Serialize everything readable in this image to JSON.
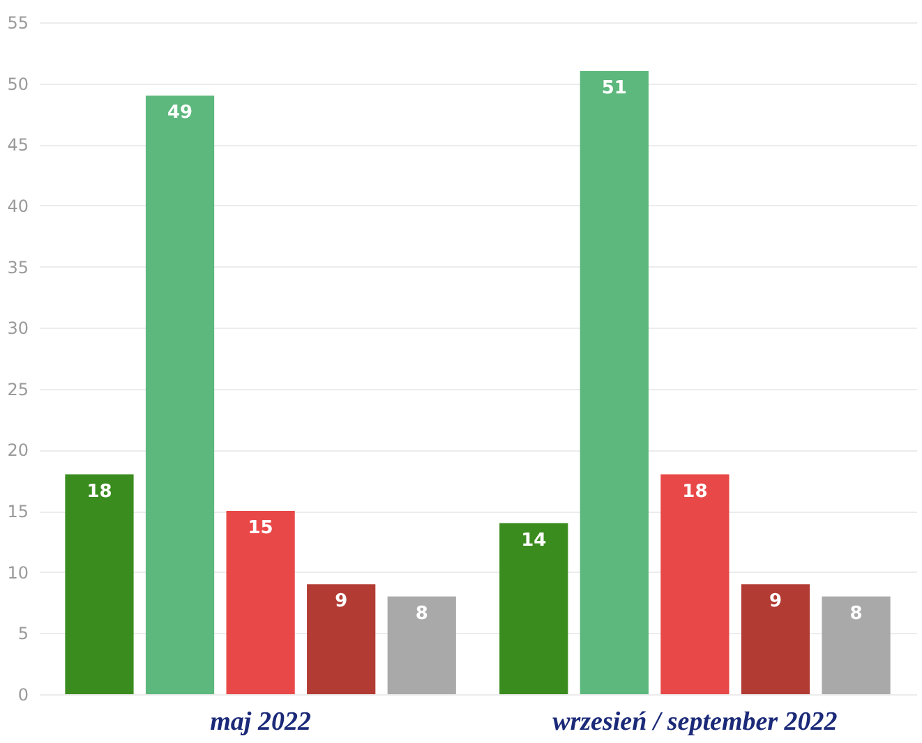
{
  "chart_data": {
    "type": "bar",
    "categories": [
      "maj 2022",
      "wrzesień / september 2022"
    ],
    "series": [
      {
        "color": "#3b8c1f",
        "values": [
          18,
          14
        ]
      },
      {
        "color": "#5cb87c",
        "values": [
          49,
          51
        ]
      },
      {
        "color": "#e94848",
        "values": [
          15,
          18
        ]
      },
      {
        "color": "#b23b33",
        "values": [
          9,
          9
        ]
      },
      {
        "color": "#a8a9a8",
        "values": [
          8,
          8
        ]
      }
    ],
    "ylim": [
      0,
      55
    ],
    "yticks": [
      0,
      5,
      10,
      15,
      20,
      25,
      30,
      35,
      40,
      45,
      50,
      55
    ],
    "grid": "y",
    "data_labels": true,
    "legend": false
  }
}
